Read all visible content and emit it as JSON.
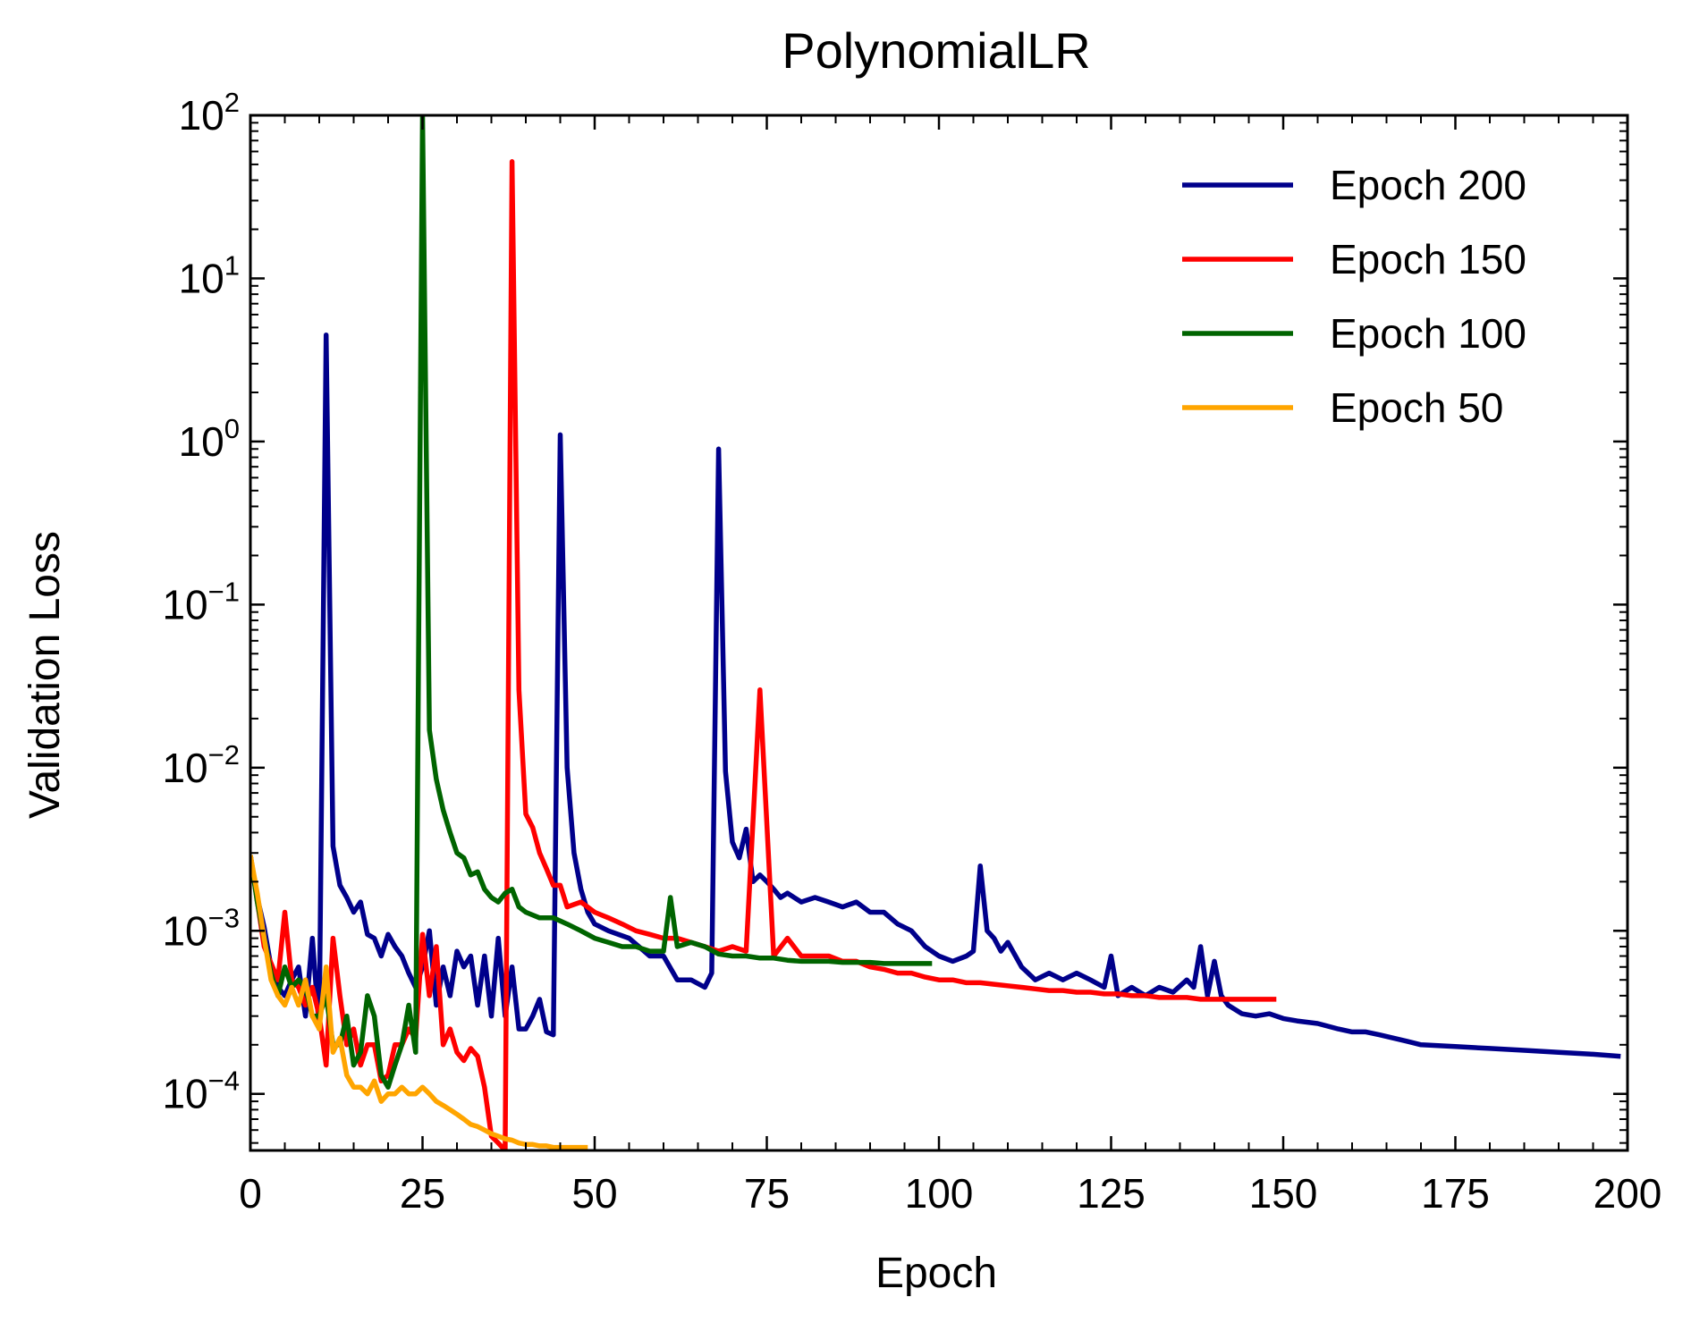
{
  "chart_data": {
    "type": "line",
    "title": "PolynomialLR",
    "xlabel": "Epoch",
    "ylabel": "Validation Loss",
    "xlim": [
      0,
      200
    ],
    "ylim": [
      4.5e-05,
      100
    ],
    "yscale": "log",
    "grid": false,
    "legend_position": "top-right",
    "x_ticks": [
      0,
      25,
      50,
      75,
      100,
      125,
      150,
      175,
      200
    ],
    "y_ticks": [
      {
        "value": 0.0001,
        "base": "10",
        "exp": "−4"
      },
      {
        "value": 0.001,
        "base": "10",
        "exp": "−3"
      },
      {
        "value": 0.01,
        "base": "10",
        "exp": "−2"
      },
      {
        "value": 0.1,
        "base": "10",
        "exp": "−1"
      },
      {
        "value": 1,
        "base": "10",
        "exp": "0"
      },
      {
        "value": 10,
        "base": "10",
        "exp": "1"
      },
      {
        "value": 100,
        "base": "10",
        "exp": "2"
      }
    ],
    "series": [
      {
        "name": "Epoch 200",
        "color": "#00008b",
        "x": [
          0,
          1,
          2,
          3,
          4,
          5,
          6,
          7,
          8,
          9,
          10,
          11,
          12,
          13,
          14,
          15,
          16,
          17,
          18,
          19,
          20,
          21,
          22,
          23,
          24,
          25,
          26,
          27,
          28,
          29,
          30,
          31,
          32,
          33,
          34,
          35,
          36,
          37,
          38,
          39,
          40,
          41,
          42,
          43,
          44,
          45,
          46,
          47,
          48,
          49,
          50,
          52,
          55,
          58,
          60,
          62,
          64,
          66,
          67,
          68,
          69,
          70,
          71,
          72,
          73,
          74,
          75,
          76,
          77,
          78,
          80,
          82,
          84,
          86,
          88,
          90,
          92,
          94,
          96,
          98,
          100,
          102,
          104,
          105,
          106,
          107,
          108,
          109,
          110,
          112,
          114,
          116,
          118,
          120,
          122,
          124,
          125,
          126,
          128,
          130,
          132,
          134,
          136,
          137,
          138,
          139,
          140,
          141,
          142,
          144,
          146,
          148,
          150,
          152,
          155,
          158,
          160,
          162,
          164,
          166,
          168,
          170,
          175,
          180,
          185,
          190,
          195,
          199
        ],
        "y": [
          0.0029,
          0.0016,
          0.00105,
          0.0006,
          0.00045,
          0.0004,
          0.0005,
          0.0006,
          0.0003,
          0.0009,
          0.00025,
          4.5,
          0.0033,
          0.0019,
          0.0016,
          0.0013,
          0.0015,
          0.00095,
          0.0009,
          0.0007,
          0.00095,
          0.0008,
          0.0007,
          0.00055,
          0.00045,
          0.0006,
          0.001,
          0.00035,
          0.0006,
          0.0004,
          0.00075,
          0.0006,
          0.0007,
          0.00035,
          0.0007,
          0.0003,
          0.0009,
          0.0003,
          0.0006,
          0.00025,
          0.00025,
          0.0003,
          0.00038,
          0.00024,
          0.00023,
          1.1,
          0.01,
          0.003,
          0.0018,
          0.0013,
          0.0011,
          0.001,
          0.0009,
          0.0007,
          0.0007,
          0.0005,
          0.0005,
          0.00045,
          0.00055,
          0.9,
          0.0095,
          0.0035,
          0.0028,
          0.0042,
          0.002,
          0.0022,
          0.002,
          0.0018,
          0.0016,
          0.0017,
          0.0015,
          0.0016,
          0.0015,
          0.0014,
          0.0015,
          0.0013,
          0.0013,
          0.0011,
          0.001,
          0.0008,
          0.0007,
          0.00065,
          0.0007,
          0.00075,
          0.0025,
          0.001,
          0.0009,
          0.00075,
          0.00085,
          0.0006,
          0.0005,
          0.00055,
          0.0005,
          0.00055,
          0.0005,
          0.00045,
          0.0007,
          0.0004,
          0.00045,
          0.0004,
          0.00045,
          0.00042,
          0.0005,
          0.00045,
          0.0008,
          0.0004,
          0.00065,
          0.0004,
          0.00035,
          0.00031,
          0.0003,
          0.00031,
          0.00029,
          0.00028,
          0.00027,
          0.00025,
          0.00024,
          0.00024,
          0.00023,
          0.00022,
          0.00021,
          0.0002,
          0.000195,
          0.00019,
          0.000185,
          0.00018,
          0.000175,
          0.00017
        ]
      },
      {
        "name": "Epoch 150",
        "color": "#ff0000",
        "x": [
          0,
          2,
          4,
          5,
          6,
          7,
          8,
          9,
          10,
          11,
          12,
          13,
          14,
          15,
          16,
          17,
          18,
          19,
          20,
          21,
          22,
          23,
          24,
          25,
          26,
          27,
          28,
          29,
          30,
          31,
          32,
          33,
          34,
          35,
          36,
          37,
          38,
          39,
          40,
          41,
          42,
          43,
          44,
          45,
          46,
          48,
          50,
          52,
          54,
          56,
          58,
          60,
          62,
          64,
          66,
          68,
          70,
          72,
          74,
          76,
          78,
          80,
          82,
          84,
          86,
          88,
          90,
          92,
          94,
          96,
          98,
          100,
          102,
          104,
          106,
          108,
          110,
          112,
          114,
          116,
          118,
          120,
          122,
          124,
          126,
          128,
          130,
          132,
          134,
          136,
          138,
          140,
          145,
          149
        ],
        "y": [
          0.0029,
          0.0008,
          0.0005,
          0.0013,
          0.0005,
          0.00045,
          0.00035,
          0.00045,
          0.0003,
          0.00015,
          0.0009,
          0.0004,
          0.0002,
          0.00025,
          0.00015,
          0.0002,
          0.0002,
          0.00012,
          0.00013,
          0.0002,
          0.0002,
          0.00025,
          0.00022,
          0.00095,
          0.0004,
          0.0008,
          0.0002,
          0.00025,
          0.00018,
          0.00016,
          0.00019,
          0.00017,
          0.00011,
          5.5e-05,
          5e-05,
          4.2e-05,
          52.0,
          0.03,
          0.0052,
          0.0043,
          0.003,
          0.0024,
          0.0019,
          0.0019,
          0.0014,
          0.0015,
          0.0013,
          0.0012,
          0.0011,
          0.001,
          0.00095,
          0.0009,
          0.0009,
          0.00085,
          0.0008,
          0.00075,
          0.0008,
          0.00075,
          0.03,
          0.0007,
          0.0009,
          0.0007,
          0.0007,
          0.0007,
          0.00065,
          0.00065,
          0.0006,
          0.00058,
          0.00055,
          0.00055,
          0.00052,
          0.0005,
          0.0005,
          0.00048,
          0.00048,
          0.00047,
          0.00046,
          0.00045,
          0.00044,
          0.00043,
          0.00043,
          0.00042,
          0.00042,
          0.00041,
          0.00041,
          0.0004,
          0.0004,
          0.00039,
          0.00039,
          0.00039,
          0.00038,
          0.00038,
          0.00038,
          0.00038
        ]
      },
      {
        "name": "Epoch 100",
        "color": "#006400",
        "x": [
          0,
          1,
          2,
          3,
          4,
          5,
          6,
          7,
          8,
          9,
          10,
          11,
          12,
          13,
          14,
          15,
          16,
          17,
          18,
          19,
          20,
          21,
          22,
          23,
          24,
          25,
          26,
          27,
          28,
          29,
          30,
          31,
          32,
          33,
          34,
          35,
          36,
          37,
          38,
          39,
          40,
          42,
          44,
          46,
          48,
          50,
          52,
          54,
          56,
          58,
          60,
          61,
          62,
          64,
          66,
          68,
          70,
          72,
          74,
          76,
          78,
          80,
          82,
          84,
          86,
          88,
          90,
          92,
          94,
          96,
          98,
          99
        ],
        "y": [
          0.0029,
          0.0015,
          0.0009,
          0.00055,
          0.0004,
          0.0006,
          0.00045,
          0.0005,
          0.00045,
          0.0003,
          0.0003,
          0.0004,
          0.0002,
          0.0002,
          0.0003,
          0.00015,
          0.00018,
          0.0004,
          0.0003,
          0.00013,
          0.00011,
          0.00015,
          0.0002,
          0.00035,
          0.00018,
          100.0,
          0.017,
          0.0085,
          0.0055,
          0.004,
          0.003,
          0.0028,
          0.0022,
          0.0023,
          0.0018,
          0.0016,
          0.0015,
          0.0017,
          0.0018,
          0.0014,
          0.0013,
          0.0012,
          0.0012,
          0.0011,
          0.001,
          0.0009,
          0.00085,
          0.0008,
          0.0008,
          0.00075,
          0.00075,
          0.0016,
          0.0008,
          0.00085,
          0.0008,
          0.00072,
          0.0007,
          0.0007,
          0.00068,
          0.00068,
          0.00066,
          0.00065,
          0.00065,
          0.00065,
          0.00064,
          0.00064,
          0.00064,
          0.00063,
          0.00063,
          0.00063,
          0.00063,
          0.00063
        ]
      },
      {
        "name": "Epoch 50",
        "color": "#ffa500",
        "x": [
          0,
          1,
          2,
          3,
          4,
          5,
          6,
          7,
          8,
          9,
          10,
          11,
          12,
          13,
          14,
          15,
          16,
          17,
          18,
          19,
          20,
          21,
          22,
          23,
          24,
          25,
          26,
          27,
          28,
          29,
          30,
          31,
          32,
          33,
          34,
          35,
          36,
          37,
          38,
          39,
          40,
          41,
          42,
          43,
          44,
          45,
          46,
          47,
          48,
          49
        ],
        "y": [
          0.0029,
          0.0017,
          0.0009,
          0.0005,
          0.0004,
          0.00035,
          0.00045,
          0.00035,
          0.0005,
          0.0003,
          0.00025,
          0.0006,
          0.00018,
          0.00022,
          0.00013,
          0.00011,
          0.00011,
          0.0001,
          0.00012,
          9e-05,
          0.0001,
          0.0001,
          0.00011,
          0.0001,
          0.0001,
          0.00011,
          0.0001,
          9e-05,
          8.5e-05,
          8e-05,
          7.5e-05,
          7e-05,
          6.5e-05,
          6.3e-05,
          6e-05,
          5.7e-05,
          5.5e-05,
          5.3e-05,
          5.2e-05,
          5e-05,
          4.9e-05,
          4.9e-05,
          4.8e-05,
          4.8e-05,
          4.7e-05,
          4.7e-05,
          4.7e-05,
          4.7e-05,
          4.7e-05,
          4.7e-05
        ]
      }
    ]
  }
}
